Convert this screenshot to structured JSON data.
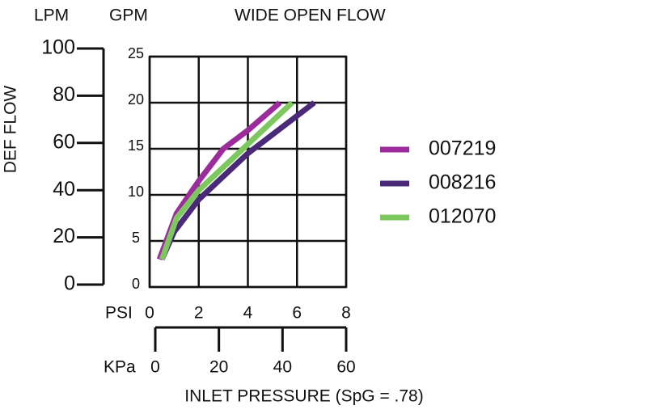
{
  "chart_data": {
    "type": "line",
    "title": "WIDE OPEN FLOW",
    "y_label": "DEF FLOW",
    "x_label": "INLET PRESSURE (SpG = .78)",
    "y_unit": "GPM",
    "y2_unit": "LPM",
    "x_unit": "PSI",
    "x2_unit": "KPa",
    "xlim": [
      0,
      8
    ],
    "xticks": [
      0,
      2,
      4,
      6,
      8
    ],
    "ylim": [
      0,
      25
    ],
    "yticks": [
      0,
      5,
      10,
      15,
      20,
      25
    ],
    "y2lim": [
      0,
      100
    ],
    "y2ticks": [
      0,
      20,
      40,
      60,
      80,
      100
    ],
    "x2lim": [
      0,
      60
    ],
    "x2ticks": [
      0,
      20,
      40,
      60
    ],
    "grid": true,
    "series": [
      {
        "name": "007219",
        "color": "#9c2c9c",
        "x": [
          0.4,
          1.1,
          2,
          3,
          4,
          5.3
        ],
        "values": [
          3,
          8,
          11.5,
          15,
          17,
          20
        ]
      },
      {
        "name": "008216",
        "color": "#4a2a78",
        "x": [
          0.5,
          1,
          2,
          4,
          6.7
        ],
        "values": [
          3,
          6,
          9.5,
          14.5,
          20
        ]
      },
      {
        "name": "012070",
        "color": "#7cc85e",
        "x": [
          0.5,
          1.1,
          2,
          4,
          5.8
        ],
        "values": [
          3,
          7.5,
          10.5,
          15.5,
          20
        ]
      }
    ]
  }
}
